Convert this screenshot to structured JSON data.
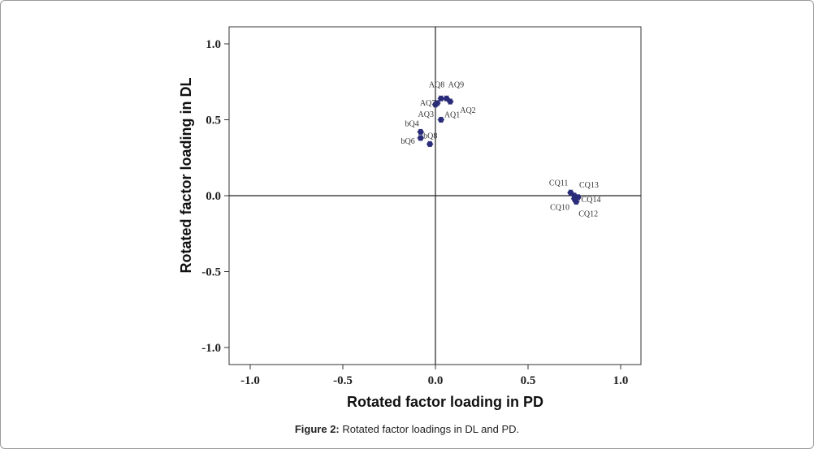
{
  "chart_data": {
    "type": "scatter",
    "xlabel": "Rotated factor loading in PD",
    "ylabel": "Rotated factor loading in DL",
    "xlim": [
      -1.1,
      1.1
    ],
    "ylim": [
      -1.1,
      1.1
    ],
    "xticks": [
      "-1.0",
      "-0.5",
      "0.0",
      "0.5",
      "1.0"
    ],
    "yticks": [
      "1.0",
      "0.5",
      "0.0",
      "-0.5",
      "-1.0"
    ],
    "grid": false,
    "reference_lines": {
      "x": 0,
      "y": 0
    },
    "marker_color": "#2b2d7a",
    "points": [
      {
        "label": "AQ1",
        "x": 0.03,
        "y": 0.5
      },
      {
        "label": "AQ2",
        "x": 0.08,
        "y": 0.62
      },
      {
        "label": "AQ3",
        "x": 0.0,
        "y": 0.6
      },
      {
        "label": "AQ7",
        "x": 0.01,
        "y": 0.61
      },
      {
        "label": "AQ8",
        "x": 0.03,
        "y": 0.64
      },
      {
        "label": "AQ9",
        "x": 0.06,
        "y": 0.64
      },
      {
        "label": "bQ4",
        "x": -0.08,
        "y": 0.42
      },
      {
        "label": "bQ6",
        "x": -0.08,
        "y": 0.38
      },
      {
        "label": "bQ8",
        "x": -0.03,
        "y": 0.34
      },
      {
        "label": "CQ10",
        "x": 0.75,
        "y": -0.02
      },
      {
        "label": "CQ11",
        "x": 0.73,
        "y": 0.02
      },
      {
        "label": "CQ12",
        "x": 0.76,
        "y": -0.04
      },
      {
        "label": "CQ13",
        "x": 0.75,
        "y": 0.0
      },
      {
        "label": "CQ14",
        "x": 0.77,
        "y": -0.01
      }
    ]
  },
  "caption": {
    "label": "Figure 2:",
    "text": " Rotated factor loadings in DL and PD."
  }
}
